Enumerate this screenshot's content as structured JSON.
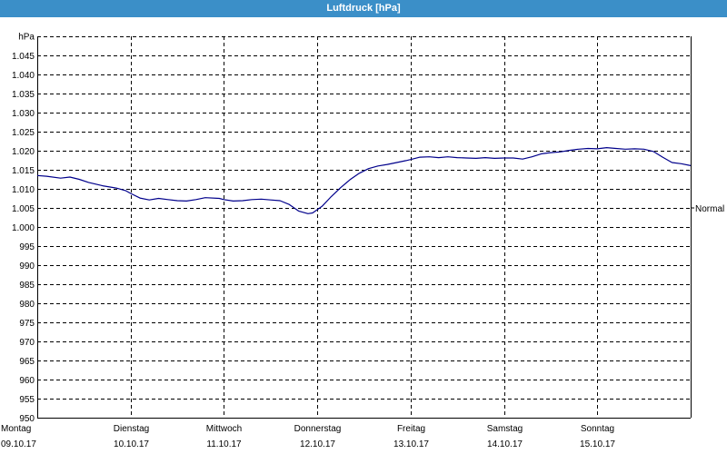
{
  "title": "Luftdruck [hPa]",
  "chart_data": {
    "type": "line",
    "title": "Luftdruck [hPa]",
    "ylabel": "hPa",
    "xlabel": "",
    "ylim": [
      950,
      1050
    ],
    "yticks": [
      950,
      955,
      960,
      965,
      970,
      975,
      980,
      985,
      990,
      995,
      1000,
      1005,
      1010,
      1015,
      1020,
      1025,
      1030,
      1035,
      1040,
      1045
    ],
    "ytick_labels": [
      "950",
      "955",
      "960",
      "965",
      "970",
      "975",
      "980",
      "985",
      "990",
      "995",
      "1.000",
      "1.005",
      "1.010",
      "1.015",
      "1.020",
      "1.025",
      "1.030",
      "1.035",
      "1.040",
      "1.045"
    ],
    "xlim": [
      0,
      7
    ],
    "day_labels": [
      {
        "day": "Montag",
        "date": "09.10.17"
      },
      {
        "day": "Dienstag",
        "date": "10.10.17"
      },
      {
        "day": "Mittwoch",
        "date": "11.10.17"
      },
      {
        "day": "Donnerstag",
        "date": "12.10.17"
      },
      {
        "day": "Freitag",
        "date": "13.10.17"
      },
      {
        "day": "Samstag",
        "date": "14.10.17"
      },
      {
        "day": "Sonntag",
        "date": "15.10.17"
      }
    ],
    "reference_line": {
      "label": "Normal",
      "value": 1005
    },
    "grid": true,
    "series": [
      {
        "color": "#00008b",
        "x": [
          0.0,
          0.1,
          0.25,
          0.35,
          0.45,
          0.55,
          0.7,
          0.85,
          0.95,
          1.0,
          1.1,
          1.2,
          1.3,
          1.4,
          1.5,
          1.6,
          1.7,
          1.8,
          1.95,
          2.0,
          2.1,
          2.2,
          2.3,
          2.4,
          2.5,
          2.6,
          2.7,
          2.8,
          2.9,
          2.95,
          3.05,
          3.15,
          3.25,
          3.35,
          3.45,
          3.55,
          3.65,
          3.75,
          3.85,
          3.95,
          4.0,
          4.1,
          4.2,
          4.3,
          4.4,
          4.5,
          4.6,
          4.7,
          4.8,
          4.9,
          5.0,
          5.1,
          5.2,
          5.3,
          5.4,
          5.5,
          5.6,
          5.7,
          5.8,
          5.9,
          6.0,
          6.1,
          6.2,
          6.3,
          6.4,
          6.5,
          6.6,
          6.7,
          6.8,
          6.9,
          7.0
        ],
        "values": [
          1013.5,
          1013.3,
          1012.8,
          1013.1,
          1012.5,
          1011.7,
          1010.8,
          1010.2,
          1009.5,
          1008.8,
          1007.6,
          1007.1,
          1007.5,
          1007.2,
          1006.9,
          1006.8,
          1007.2,
          1007.7,
          1007.5,
          1007.2,
          1006.8,
          1006.9,
          1007.2,
          1007.3,
          1007.1,
          1006.9,
          1005.9,
          1004.2,
          1003.5,
          1003.7,
          1005.4,
          1008.0,
          1010.3,
          1012.4,
          1014.1,
          1015.3,
          1016.0,
          1016.4,
          1016.9,
          1017.4,
          1017.7,
          1018.3,
          1018.4,
          1018.2,
          1018.4,
          1018.2,
          1018.1,
          1018.0,
          1018.2,
          1018.0,
          1018.1,
          1018.1,
          1017.8,
          1018.4,
          1019.2,
          1019.5,
          1019.7,
          1020.1,
          1020.4,
          1020.6,
          1020.5,
          1020.8,
          1020.6,
          1020.4,
          1020.5,
          1020.4,
          1019.8,
          1018.3,
          1016.9,
          1016.6,
          1016.1
        ]
      }
    ]
  }
}
